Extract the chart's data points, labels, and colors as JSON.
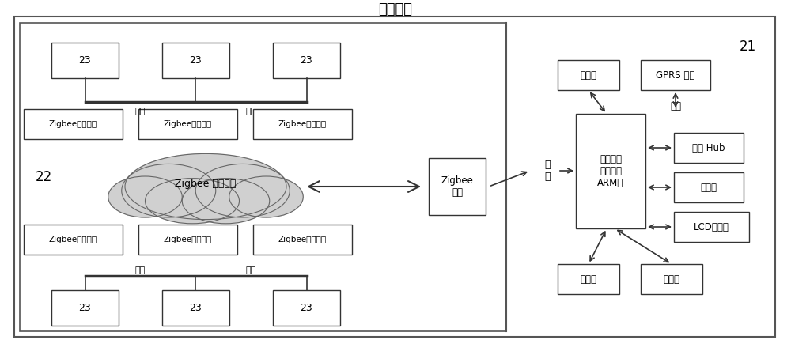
{
  "title": "中心温室",
  "title_fontsize": 13,
  "background_color": "#ffffff",
  "box_edge_color": "#333333",
  "box_fill_color": "#ffffff",
  "fig_border_color": "#555555",
  "label_22": "22",
  "label_21": "21",
  "label_zigbee_wireless": "Zigbee 无线网络",
  "label_zigbee_gateway": "Zigbee\n网关",
  "label_relay_top": "继电器",
  "label_gprs": "GPRS 模块",
  "label_serial_port": "串口",
  "label_field_controller": "现场控制\n器（基于\nARM）",
  "label_serial_hub": "串口 Hub",
  "label_camera": "摄像头",
  "label_lcd": "LCD触摸屏",
  "label_relay_bottom": "继电器",
  "label_ethernet": "以太网",
  "label_cable": "线缆",
  "label_23": "23",
  "node_labels": [
    "Zigbee采集节点",
    "Zigbee采集节点",
    "Zigbee采集节点",
    "Zigbee采集节点",
    "Zigbee采集节点",
    "Zigbee采集节点"
  ],
  "serial_label": "串\n口",
  "font_size_main": 9,
  "font_size_small": 8,
  "font_size_label": 8,
  "cloud_color": "#d0d0d0",
  "arrow_color": "#333333"
}
